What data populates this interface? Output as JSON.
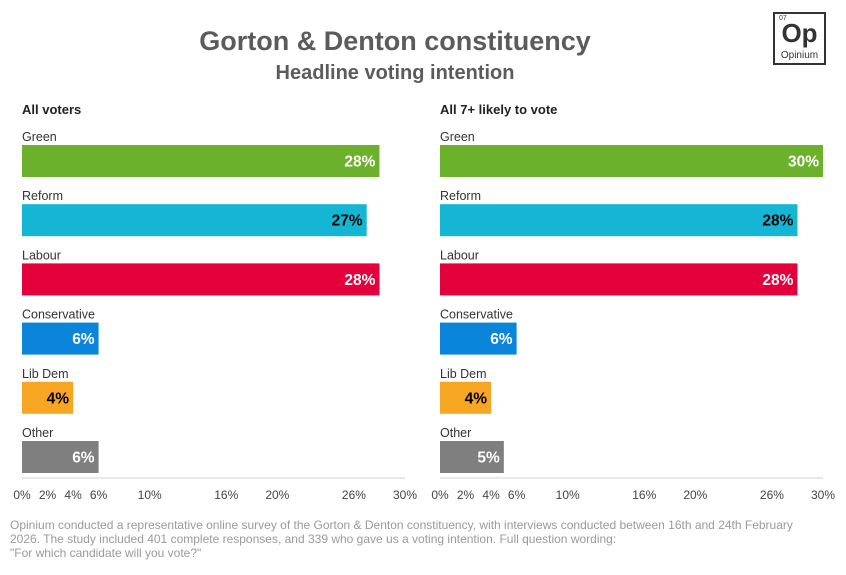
{
  "header": {
    "title": "Gorton & Denton constituency",
    "subtitle": "Headline voting intention",
    "logo": {
      "number": "07",
      "symbol": "Op",
      "name": "Opinium"
    }
  },
  "chart_data": [
    {
      "type": "bar",
      "orientation": "horizontal",
      "title": "All voters",
      "categories": [
        "Green",
        "Reform",
        "Labour",
        "Conservative",
        "Lib Dem",
        "Other"
      ],
      "values": [
        28,
        27,
        28,
        6,
        4,
        6
      ],
      "value_labels": [
        "28%",
        "27%",
        "28%",
        "6%",
        "4%",
        "6%"
      ],
      "colors": [
        "#6cb12c",
        "#14b6d4",
        "#e4003b",
        "#0b85d9",
        "#f6a623",
        "#7f7f7f"
      ],
      "label_colors": [
        "#ffffff",
        "#000000",
        "#ffffff",
        "#ffffff",
        "#000000",
        "#ffffff"
      ],
      "xlim": [
        0,
        30
      ],
      "xticks": [
        0,
        2,
        4,
        6,
        10,
        16,
        20,
        26,
        30
      ],
      "xtick_labels": [
        "0%",
        "2%",
        "4%",
        "6%",
        "10%",
        "16%",
        "20%",
        "26%",
        "30%"
      ],
      "grid": false
    },
    {
      "type": "bar",
      "orientation": "horizontal",
      "title": "All 7+ likely to vote",
      "categories": [
        "Green",
        "Reform",
        "Labour",
        "Conservative",
        "Lib Dem",
        "Other"
      ],
      "values": [
        30,
        28,
        28,
        6,
        4,
        5
      ],
      "value_labels": [
        "30%",
        "28%",
        "28%",
        "6%",
        "4%",
        "5%"
      ],
      "colors": [
        "#6cb12c",
        "#14b6d4",
        "#e4003b",
        "#0b85d9",
        "#f6a623",
        "#7f7f7f"
      ],
      "label_colors": [
        "#ffffff",
        "#000000",
        "#ffffff",
        "#ffffff",
        "#000000",
        "#ffffff"
      ],
      "xlim": [
        0,
        30
      ],
      "xticks": [
        0,
        2,
        4,
        6,
        10,
        16,
        20,
        26,
        30
      ],
      "xtick_labels": [
        "0%",
        "2%",
        "4%",
        "6%",
        "10%",
        "16%",
        "20%",
        "26%",
        "30%"
      ],
      "grid": false
    }
  ],
  "footnote": {
    "line1": "Opinium conducted a representative online survey of the Gorton & Denton constituency, with interviews conducted between 16th and 24th February",
    "line2": "2026. The study included 401 complete responses, and 339 who gave us a voting intention. Full question wording:",
    "line3": "\"For which candidate will you vote?\""
  }
}
